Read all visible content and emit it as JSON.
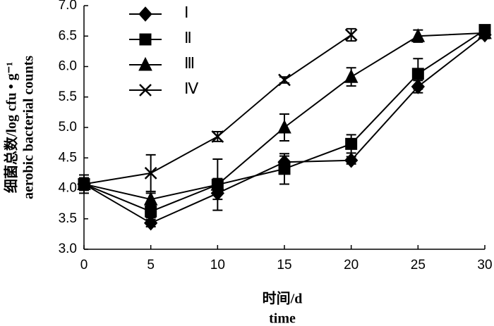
{
  "chart_data": {
    "type": "line",
    "x_label": [
      "时间/d",
      "time"
    ],
    "y_label": [
      "细菌总数/log cfu • g⁻¹",
      "aerobic bacterial counts"
    ],
    "x": [
      0,
      5,
      10,
      15,
      20,
      25,
      30
    ],
    "xlim": [
      0,
      30
    ],
    "xticks": [
      0,
      5,
      10,
      15,
      20,
      25,
      30
    ],
    "ylim": [
      3,
      7
    ],
    "yticks": [
      {
        "value": 3,
        "label": "3.0"
      },
      3.5,
      {
        "value": 4,
        "label": "4.0"
      },
      4.5,
      {
        "value": 5,
        "label": "5.0"
      },
      5.5,
      {
        "value": 6,
        "label": "6.0"
      },
      6.5,
      {
        "value": 7,
        "label": "7.0"
      }
    ],
    "legend": "upper-left",
    "series": [
      {
        "name": "Ⅰ",
        "color": "#000000",
        "marker": "diamond",
        "values": [
          4.07,
          3.43,
          3.92,
          4.43,
          4.46,
          5.67,
          6.52
        ],
        "errors": [
          0.1,
          0.06,
          0.1,
          0.1,
          0.06,
          0.1,
          0.06
        ]
      },
      {
        "name": "Ⅱ",
        "color": "#000000",
        "marker": "square",
        "values": [
          4.07,
          3.62,
          4.06,
          4.32,
          4.73,
          5.88,
          6.6
        ],
        "errors": [
          0.15,
          0.1,
          0.42,
          0.25,
          0.15,
          0.25,
          0.05
        ]
      },
      {
        "name": "Ⅲ",
        "color": "#000000",
        "marker": "triangle",
        "values": [
          4.07,
          3.82,
          4.06,
          5.0,
          5.83,
          6.5,
          6.55
        ],
        "errors": [
          0.1,
          0.1,
          0.1,
          0.22,
          0.15,
          0.1,
          0.05
        ]
      },
      {
        "name": "Ⅳ",
        "color": "#000000",
        "marker": "x",
        "values": [
          4.07,
          4.25,
          4.85,
          5.78,
          6.52,
          null,
          null
        ],
        "errors": [
          0.1,
          0.3,
          0.08,
          0.05,
          0.1,
          null,
          null
        ]
      }
    ]
  }
}
